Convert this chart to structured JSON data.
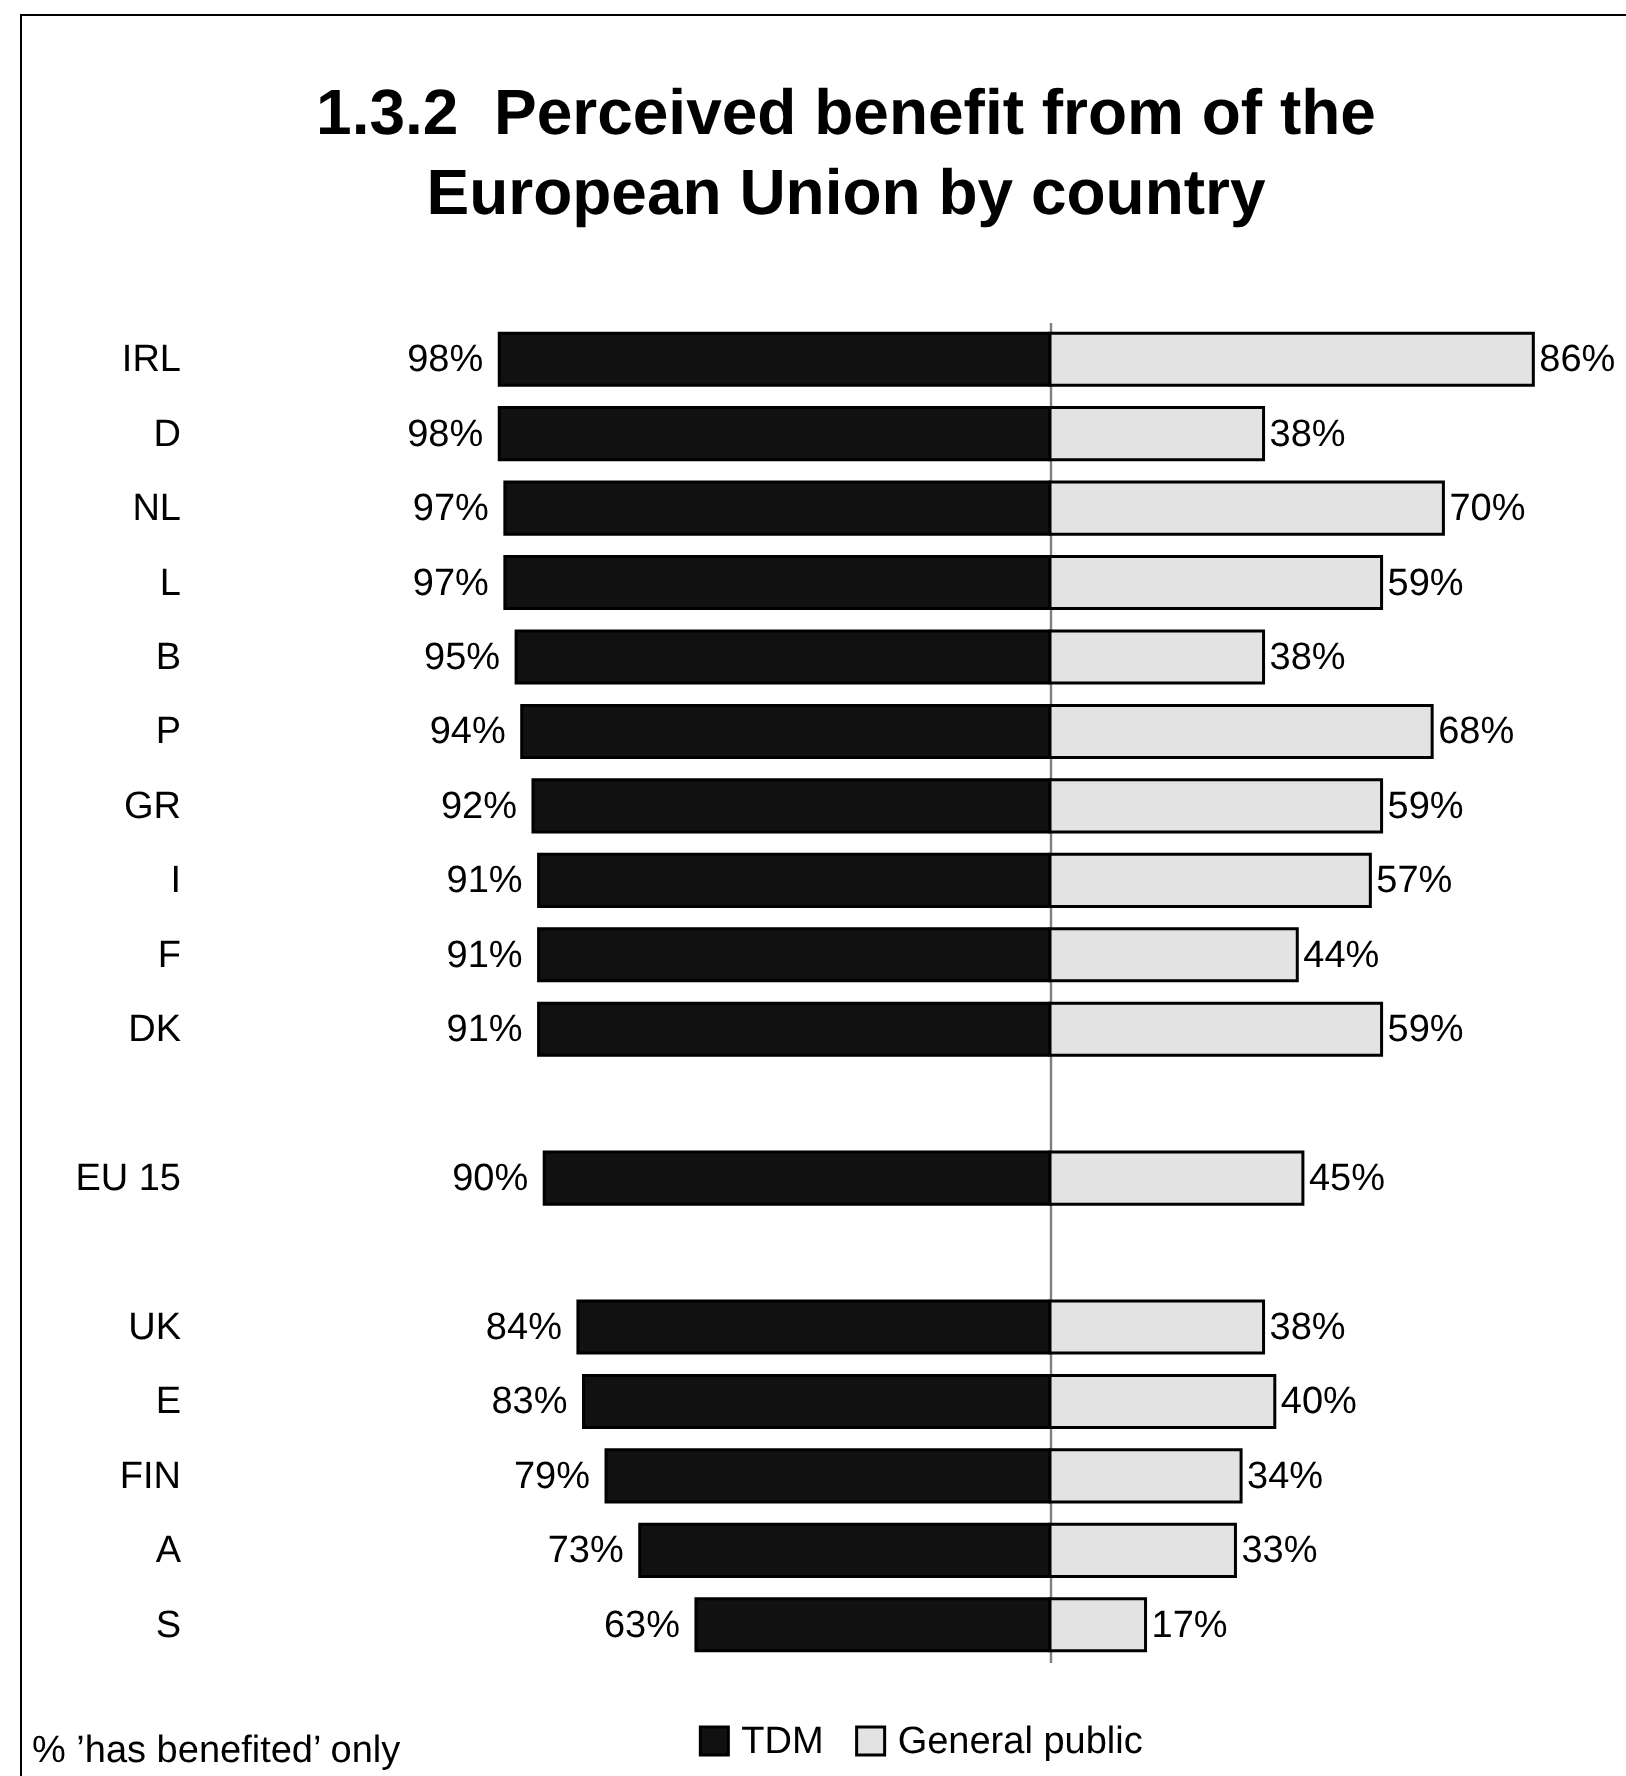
{
  "chart_data": [
    {
      "type": "bar",
      "title": "1.3.2  Perceived benefit from of the\nEuropean Union by country",
      "categories": [
        "IRL",
        "D",
        "NL",
        "L",
        "B",
        "P",
        "GR",
        "I",
        "F",
        "DK",
        null,
        "EU 15",
        null,
        "UK",
        "E",
        "FIN",
        "A",
        "S"
      ],
      "orientation": "horizontal",
      "tick_labels": "y",
      "legend": "bottom",
      "xlim": [
        98,
        0
      ],
      "series": [
        {
          "name": "TDM",
          "color": "#111111",
          "values": [
            98,
            98,
            97,
            97,
            95,
            94,
            92,
            91,
            91,
            91,
            null,
            90,
            null,
            84,
            83,
            79,
            73,
            63
          ],
          "value_labels": [
            "98%",
            "98%",
            "97%",
            "97%",
            "95%",
            "94%",
            "92%",
            "91%",
            "91%",
            "91%",
            null,
            "90%",
            null,
            "84%",
            "83%",
            "79%",
            "73%",
            "63%"
          ]
        }
      ],
      "annotations": [
        "% ’has benefited’ only"
      ]
    },
    {
      "type": "bar",
      "categories": [
        null,
        null,
        null,
        null,
        null,
        null,
        null,
        null,
        null,
        null,
        null,
        null,
        null,
        null,
        null,
        null,
        null,
        null
      ],
      "orientation": "horizontal",
      "tick_labels": false,
      "legend": "bottom",
      "xlim": [
        0,
        86
      ],
      "series": [
        {
          "name": "General public",
          "color": "#e3e3e3",
          "values": [
            86,
            38,
            70,
            59,
            38,
            68,
            59,
            57,
            44,
            59,
            null,
            45,
            null,
            38,
            40,
            34,
            33,
            17
          ],
          "value_labels": [
            "86%",
            "38%",
            "70%",
            "59%",
            "38%",
            "68%",
            "59%",
            "57%",
            "44%",
            "59%",
            null,
            "45%",
            null,
            "38%",
            "40%",
            "34%",
            "33%",
            "17%"
          ]
        }
      ]
    }
  ]
}
